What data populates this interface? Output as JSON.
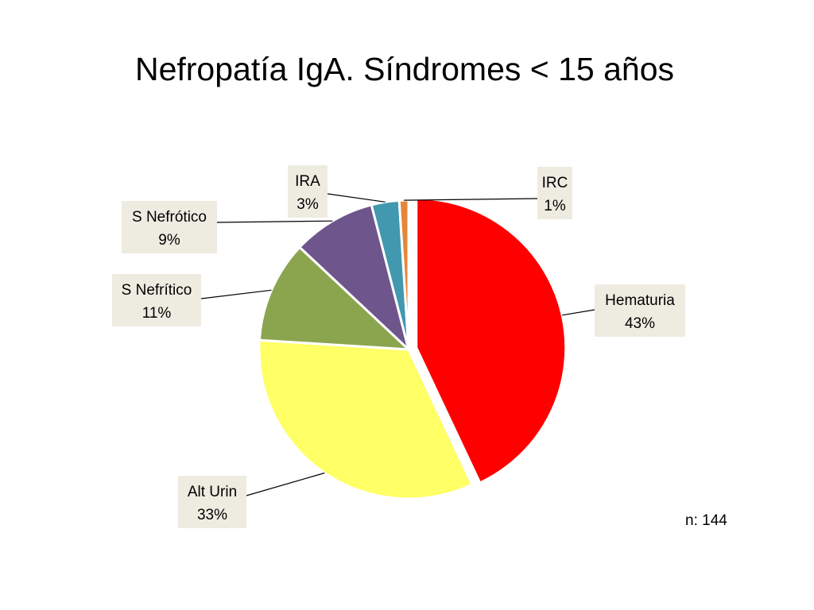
{
  "slide": {
    "title": "Nefropatía IgA. Síndromes < 15 años",
    "note": "n: 144"
  },
  "label_box_color": "#EEECE1",
  "chart_data": {
    "type": "pie",
    "title": "",
    "start_angle_deg": 0,
    "direction": "clockwise",
    "exploded_slice": "Hematuria",
    "slices": [
      {
        "label": "Hematuria",
        "value": 43,
        "value_label": "43%",
        "color": "#FF0000"
      },
      {
        "label": "Alt Urin",
        "value": 33,
        "value_label": "33%",
        "color": "#FFFF66"
      },
      {
        "label": "S Nefrítico",
        "value": 11,
        "value_label": "11%",
        "color": "#8BA54F"
      },
      {
        "label": "S Nefrótico",
        "value": 9,
        "value_label": "9%",
        "color": "#6E568C"
      },
      {
        "label": "IRA",
        "value": 3,
        "value_label": "3%",
        "color": "#4198AF"
      },
      {
        "label": "IRC",
        "value": 1,
        "value_label": "1%",
        "color": "#E3873B"
      }
    ]
  }
}
